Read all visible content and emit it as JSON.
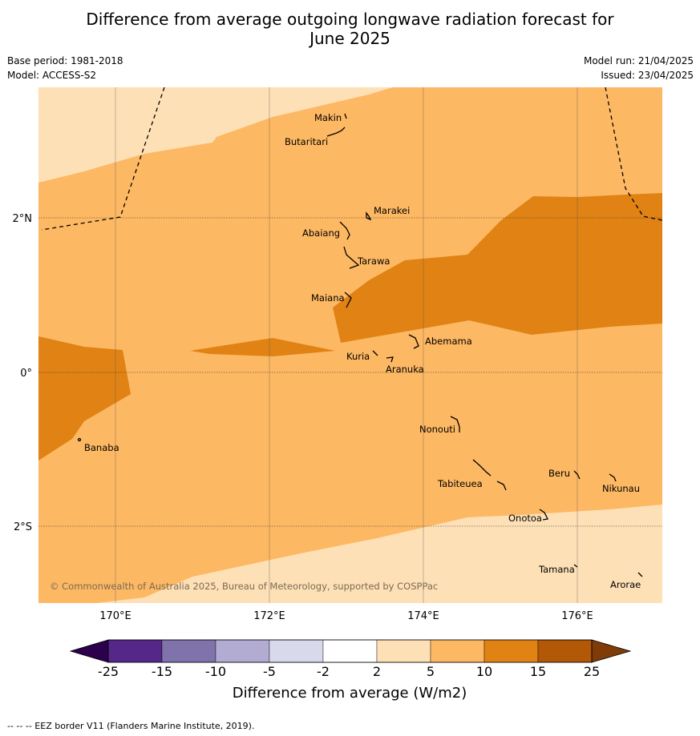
{
  "title_line1": "Difference from average outgoing longwave radiation forecast for",
  "title_line2": "June 2025",
  "base_period": "Base period: 1981-2018",
  "model": "Model: ACCESS-S2",
  "model_run": "Model run: 21/04/2025",
  "issued": "Issued: 23/04/2025",
  "lat_labels": [
    "2°N",
    "0°",
    "2°S"
  ],
  "lon_labels": [
    "170°E",
    "172°E",
    "174°E",
    "176°E"
  ],
  "places": [
    "Makin",
    "Butaritari",
    "Marakei",
    "Abaiang",
    "Tarawa",
    "Maiana",
    "Abemama",
    "Kuria",
    "Aranuka",
    "Nonouti",
    "Banaba",
    "Beru",
    "Nikunau",
    "Tabiteuea",
    "Onotoa",
    "Tamana",
    "Arorae"
  ],
  "copyright": "© Commonwealth of Australia 2025, Bureau of Meteorology, supported by COSPPac",
  "colorbar": {
    "ticks": [
      "-25",
      "-15",
      "-10",
      "-5",
      "-2",
      "2",
      "5",
      "10",
      "15",
      "25"
    ],
    "colors": [
      "#2d004b",
      "#542788",
      "#8073ac",
      "#b2abd2",
      "#d8daeb",
      "#ffffff",
      "#fee0b6",
      "#fdb863",
      "#e08214",
      "#b35806",
      "#7f3b08"
    ],
    "label": "Difference from average (W/m2)"
  },
  "legend_note": "--  --  -- EEZ border V11 (Flanders Marine Institute, 2019).",
  "map_colors": {
    "light": "#fee0b6",
    "medium": "#fdb863",
    "dark": "#e08214"
  }
}
